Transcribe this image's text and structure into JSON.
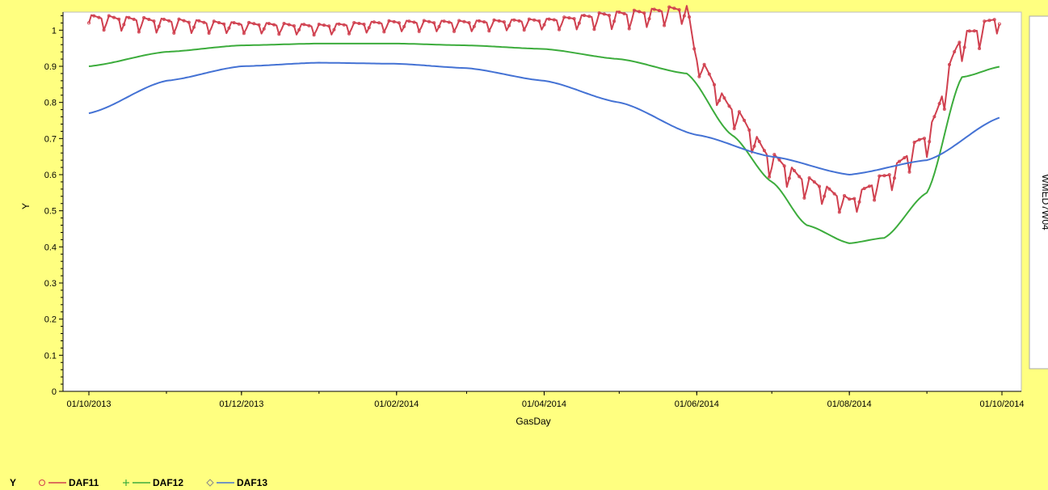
{
  "chart_data": {
    "type": "line",
    "xlabel": "GasDay",
    "ylabel": "Y",
    "xlim": [
      "2013-10-01",
      "2014-10-01"
    ],
    "ylim": [
      0,
      1.05
    ],
    "x_ticks": [
      "01/10/2013",
      "01/12/2013",
      "01/02/2014",
      "01/04/2014",
      "01/06/2014",
      "01/08/2014",
      "01/10/2014"
    ],
    "y_ticks": [
      "0",
      "0.1",
      "0.2",
      "0.3",
      "0.4",
      "0.5",
      "0.6",
      "0.7",
      "0.8",
      "0.9",
      "1"
    ],
    "panel_label": "WMED7W04",
    "grid": false,
    "legend": {
      "title": "Y",
      "position": "bottom-left",
      "entries": [
        {
          "marker": "o",
          "label": "DAF11"
        },
        {
          "marker": "+",
          "label": "DAF12"
        },
        {
          "marker": "◇",
          "label": "DAF13"
        }
      ]
    },
    "series": [
      {
        "name": "DAF11",
        "color": "#d0404f",
        "marker": "circle",
        "pattern": "weekly",
        "x": [
          "2013-10-01",
          "2013-11-01",
          "2013-12-01",
          "2014-01-01",
          "2014-02-01",
          "2014-03-01",
          "2014-04-01",
          "2014-05-01",
          "2014-05-28",
          "2014-06-01",
          "2014-06-15",
          "2014-07-01",
          "2014-07-15",
          "2014-08-01",
          "2014-08-15",
          "2014-09-01",
          "2014-09-15",
          "2014-10-01"
        ],
        "base": [
          1.02,
          1.01,
          1.005,
          1.0,
          1.01,
          1.01,
          1.015,
          1.025,
          1.04,
          0.9,
          0.76,
          0.62,
          0.56,
          0.51,
          0.57,
          0.68,
          0.95,
          1.02
        ],
        "amp": [
          0.04,
          0.04,
          0.03,
          0.03,
          0.03,
          0.03,
          0.03,
          0.05,
          0.05,
          0.05,
          0.06,
          0.07,
          0.06,
          0.05,
          0.06,
          0.07,
          0.08,
          0.05
        ]
      },
      {
        "name": "DAF12",
        "color": "#3cac3c",
        "marker": "plus",
        "x": [
          "2013-10-01",
          "2013-11-01",
          "2013-12-01",
          "2014-01-01",
          "2014-02-01",
          "2014-03-01",
          "2014-04-01",
          "2014-05-01",
          "2014-05-28",
          "2014-06-15",
          "2014-07-01",
          "2014-07-15",
          "2014-08-01",
          "2014-08-15",
          "2014-09-01",
          "2014-09-15",
          "2014-10-01"
        ],
        "values": [
          0.9,
          0.94,
          0.958,
          0.963,
          0.963,
          0.958,
          0.948,
          0.92,
          0.88,
          0.71,
          0.58,
          0.46,
          0.41,
          0.425,
          0.55,
          0.87,
          0.9
        ]
      },
      {
        "name": "DAF13",
        "color": "#4472d4",
        "marker": "diamond",
        "x": [
          "2013-10-01",
          "2013-11-01",
          "2013-12-01",
          "2014-01-01",
          "2014-02-01",
          "2014-03-01",
          "2014-04-01",
          "2014-05-01",
          "2014-06-01",
          "2014-07-01",
          "2014-08-01",
          "2014-09-01",
          "2014-10-01"
        ],
        "values": [
          0.77,
          0.86,
          0.9,
          0.91,
          0.907,
          0.895,
          0.86,
          0.8,
          0.71,
          0.65,
          0.6,
          0.64,
          0.76
        ]
      }
    ]
  }
}
